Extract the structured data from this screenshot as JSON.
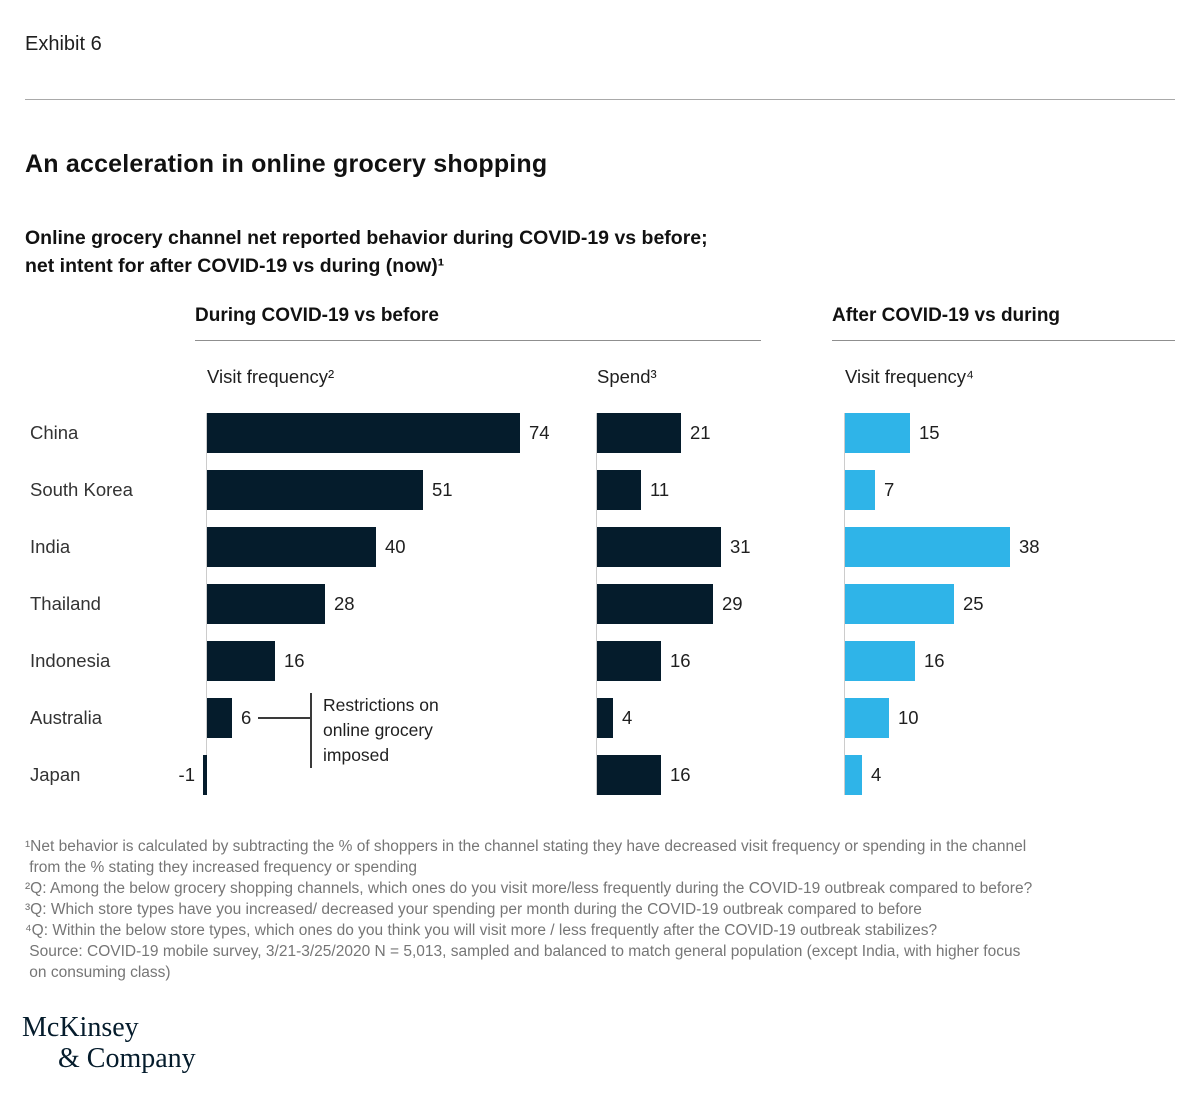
{
  "page": {
    "exhibit_label": "Exhibit 6",
    "title": "An acceleration in online grocery shopping",
    "subtitle": "Online grocery channel net reported behavior during COVID-19 vs before;\nnet intent for after COVID-19 vs during (now)¹"
  },
  "chart_data": {
    "type": "bar",
    "orientation": "horizontal",
    "categories": [
      "China",
      "South Korea",
      "India",
      "Thailand",
      "Indonesia",
      "Australia",
      "Japan"
    ],
    "groups": [
      {
        "label": "During COVID-19 vs before"
      },
      {
        "label": "After COVID-19 vs during"
      }
    ],
    "series": [
      {
        "name": "Visit frequency²",
        "group": "During COVID-19 vs before",
        "color": "#051c2c",
        "values": [
          74,
          51,
          40,
          28,
          16,
          6,
          -1
        ]
      },
      {
        "name": "Spend³",
        "group": "During COVID-19 vs before",
        "color": "#051c2c",
        "values": [
          21,
          11,
          31,
          29,
          16,
          4,
          16
        ]
      },
      {
        "name": "Visit frequency⁴",
        "group": "After COVID-19 vs during",
        "color": "#2fb4e8",
        "values": [
          15,
          7,
          38,
          25,
          16,
          10,
          4
        ]
      }
    ],
    "value_labels": true,
    "xlim_hint": [
      0,
      80
    ],
    "annotation": {
      "text": "Restrictions on\nonline grocery\nimposed",
      "target_category": "Australia",
      "target_series": "Visit frequency²",
      "target_value": 6
    },
    "colors": {
      "during_bar": "#051c2c",
      "after_bar": "#2fb4e8"
    }
  },
  "footnotes": "¹Net behavior is calculated by subtracting the % of shoppers in the channel stating they have decreased visit frequency or spending in the channel\n from the % stating they increased frequency or spending\n²Q: Among the below grocery shopping channels, which ones do you visit more/less frequently during the COVID-19 outbreak compared to before?\n³Q: Which store types have you increased/ decreased your spending per month during the COVID-19 outbreak compared to before\n⁴Q: Within the below store types, which ones do you think you will visit more / less frequently after the COVID-19 outbreak stabilizes?\n Source: COVID-19 mobile survey, 3/21-3/25/2020 N = 5,013, sampled and balanced to match general population (except India, with higher focus\n on consuming class)",
  "logo": {
    "line1": "McKinsey",
    "line2": "& Company"
  }
}
